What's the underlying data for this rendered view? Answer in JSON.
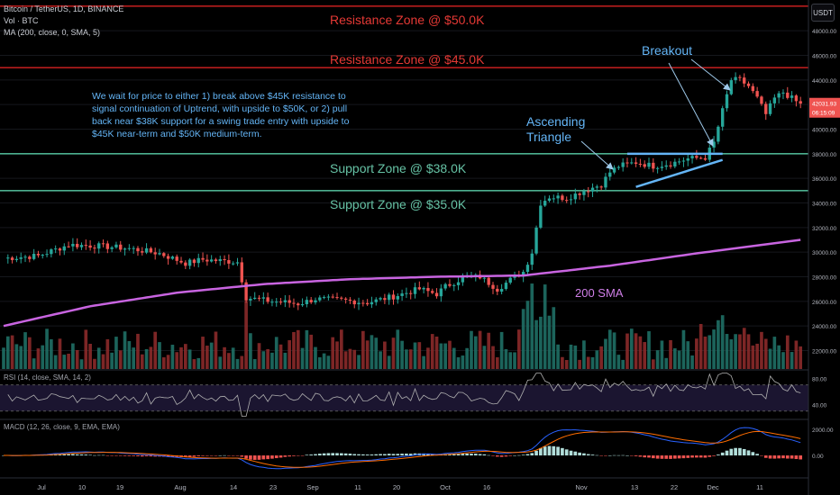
{
  "header": {
    "symbol_line": "Bitcoin / TetherUS, 1D, BINANCE",
    "vol_line": "Vol · BTC",
    "ma_line": "MA (200, close, 0, SMA, 5)",
    "units_button": "USDT"
  },
  "annotations": {
    "resistance_50": "Resistance Zone @ $50.0K",
    "resistance_45": "Resistance Zone @ $45.0K",
    "support_38": "Support Zone @ $38.0K",
    "support_35": "Support Zone @ $35.0K",
    "note_lines": [
      "We wait for price to either 1) break above $45K resistance to",
      "signal continuation of Uptrend, with upside to $50K, or 2) pull",
      "back near $38K support for a swing trade entry with upside to",
      "$45K near-term and $50K medium-term."
    ],
    "ascending_line1": "Ascending",
    "ascending_line2": "Triangle",
    "breakout": "Breakout",
    "sma_label": "200 SMA"
  },
  "price_axis": {
    "ticks": [
      "48000.00",
      "46000.00",
      "44000.00",
      "42000.00",
      "40000.00",
      "38000.00",
      "36000.00",
      "34000.00",
      "32000.00",
      "30000.00",
      "28000.00",
      "26000.00",
      "24000.00",
      "22000.00"
    ],
    "last_price": "42031.93",
    "countdown": "06:15:09"
  },
  "rsi_panel": {
    "label": "RSI (14, close, SMA, 14, 2)",
    "ticks": [
      "80.00",
      "40.00"
    ]
  },
  "macd_panel": {
    "label": "MACD (12, 26, close, 9, EMA, EMA)",
    "ticks": [
      "2000.00",
      "0.00"
    ]
  },
  "time_axis": {
    "labels": [
      "Jul",
      "10",
      "19",
      "Aug",
      "14",
      "23",
      "Sep",
      "11",
      "20",
      "Oct",
      "16",
      "Nov",
      "13",
      "22",
      "Dec",
      "11"
    ]
  },
  "colors": {
    "background": "#000000",
    "up": "#26a69a",
    "down": "#ef5350",
    "resistance_line": "#b71c1c",
    "support_line": "#4caf8f",
    "sma_line": "#c864e0",
    "annotation_blue": "#64b5f6",
    "resistance_text": "#e53935",
    "support_text": "#66c2a5",
    "sma_text": "#d07fe8",
    "macd_line": "#2962ff",
    "signal_line": "#ff6d00",
    "rsi_line": "#b0b0b0"
  },
  "chart_data": {
    "type": "candlestick",
    "symbol": "Bitcoin / TetherUS",
    "interval": "1D",
    "y_range": [
      20500,
      50500
    ],
    "horizontal_levels": [
      50000,
      45000,
      38000,
      35000
    ],
    "price_anchors": [
      [
        0,
        29500
      ],
      [
        8,
        29700
      ],
      [
        15,
        30600
      ],
      [
        22,
        30500
      ],
      [
        29,
        30300
      ],
      [
        36,
        29900
      ],
      [
        42,
        29100
      ],
      [
        46,
        29400
      ],
      [
        50,
        29300
      ],
      [
        54,
        29200
      ],
      [
        56,
        26300
      ],
      [
        62,
        26000
      ],
      [
        66,
        25900
      ],
      [
        68,
        25800
      ],
      [
        72,
        26200
      ],
      [
        78,
        26100
      ],
      [
        84,
        25900
      ],
      [
        90,
        26400
      ],
      [
        96,
        27000
      ],
      [
        100,
        26600
      ],
      [
        102,
        27200
      ],
      [
        106,
        27900
      ],
      [
        110,
        28000
      ],
      [
        114,
        27000
      ],
      [
        118,
        28000
      ],
      [
        120,
        28400
      ],
      [
        122,
        30000
      ],
      [
        124,
        34000
      ],
      [
        126,
        34500
      ],
      [
        130,
        34400
      ],
      [
        134,
        35000
      ],
      [
        138,
        35500
      ],
      [
        140,
        36500
      ],
      [
        142,
        37000
      ],
      [
        146,
        37300
      ],
      [
        150,
        37000
      ],
      [
        154,
        37200
      ],
      [
        158,
        37600
      ],
      [
        162,
        37700
      ],
      [
        164,
        38900
      ],
      [
        166,
        41500
      ],
      [
        168,
        44000
      ],
      [
        170,
        44000
      ],
      [
        172,
        43500
      ],
      [
        174,
        42500
      ],
      [
        176,
        41200
      ],
      [
        178,
        42500
      ],
      [
        180,
        43000
      ],
      [
        182,
        42500
      ],
      [
        184,
        42000
      ]
    ],
    "sma200_anchors": [
      [
        0,
        24000
      ],
      [
        20,
        25600
      ],
      [
        40,
        26700
      ],
      [
        60,
        27400
      ],
      [
        80,
        27800
      ],
      [
        100,
        28000
      ],
      [
        120,
        28100
      ],
      [
        140,
        28900
      ],
      [
        160,
        29900
      ],
      [
        184,
        31000
      ]
    ],
    "rsi_range": [
      20,
      90
    ],
    "macd_range": [
      -1500,
      2600
    ]
  }
}
